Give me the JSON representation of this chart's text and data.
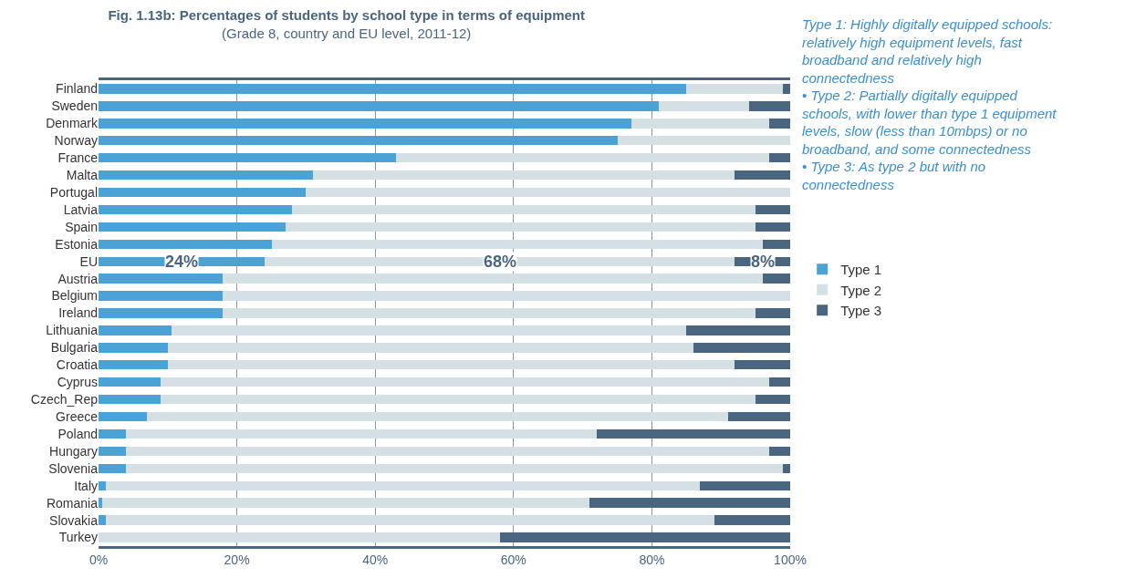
{
  "chart_data": {
    "type": "bar",
    "orientation": "horizontal",
    "stacked": true,
    "title": "Fig. 1.13b: Percentages of students by school type in terms of equipment",
    "subtitle": "(Grade 8, country and EU level, 2011-12)",
    "categories": [
      "Finland",
      "Sweden",
      "Denmark",
      "Norway",
      "France",
      "Malta",
      "Portugal",
      "Latvia",
      "Spain",
      "Estonia",
      "EU",
      "Austria",
      "Belgium",
      "Ireland",
      "Lithuania",
      "Bulgaria",
      "Croatia",
      "Cyprus",
      "Czech_Rep",
      "Greece",
      "Poland",
      "Hungary",
      "Slovenia",
      "Italy",
      "Romania",
      "Slovakia",
      "Turkey"
    ],
    "series": [
      {
        "name": "Type 1",
        "color": "#4aa3d4",
        "values": [
          85,
          81,
          77,
          75,
          43,
          31,
          30,
          28,
          27,
          25,
          24,
          18,
          18,
          18,
          10.5,
          10,
          10,
          9,
          9,
          7,
          4,
          4,
          4,
          1,
          0.5,
          1,
          0
        ],
        "value_labels": [
          null,
          null,
          null,
          null,
          null,
          null,
          null,
          null,
          null,
          null,
          "24%",
          null,
          null,
          null,
          null,
          null,
          null,
          null,
          null,
          null,
          null,
          null,
          null,
          null,
          null,
          null,
          null
        ]
      },
      {
        "name": "Type 2",
        "color": "#d4e0e4",
        "values": [
          14,
          13,
          20,
          25,
          54,
          61,
          70,
          67,
          68,
          71,
          68,
          78,
          82,
          77,
          74.5,
          76,
          82,
          88,
          86,
          84,
          68,
          93,
          95,
          86,
          70.5,
          88,
          58
        ],
        "value_labels": [
          null,
          null,
          null,
          null,
          null,
          null,
          null,
          null,
          null,
          null,
          "68%",
          null,
          null,
          null,
          null,
          null,
          null,
          null,
          null,
          null,
          null,
          null,
          null,
          null,
          null,
          null,
          null
        ]
      },
      {
        "name": "Type 3",
        "color": "#4a6580",
        "values": [
          1,
          6,
          3,
          0,
          3,
          8,
          0,
          5,
          5,
          4,
          8,
          4,
          0,
          5,
          15,
          14,
          8,
          3,
          5,
          9,
          28,
          3,
          1,
          13,
          29,
          11,
          42
        ],
        "value_labels": [
          null,
          null,
          null,
          null,
          null,
          null,
          null,
          null,
          null,
          null,
          "8%",
          null,
          null,
          null,
          null,
          null,
          null,
          null,
          null,
          null,
          null,
          null,
          null,
          null,
          null,
          null,
          null
        ]
      }
    ],
    "xlim": [
      0,
      100
    ],
    "xticks": [
      {
        "value": 0,
        "label": "0%"
      },
      {
        "value": 20,
        "label": "20%"
      },
      {
        "value": 40,
        "label": "40%"
      },
      {
        "value": 60,
        "label": "60%"
      },
      {
        "value": 80,
        "label": "80%"
      },
      {
        "value": 100,
        "label": "100%"
      }
    ],
    "grid": "x",
    "legend": "right",
    "annotations": [
      "Type 1: Highly digitally equipped schools: relatively high equipment levels, fast broadband and relatively high connectedness",
      "• Type 2: Partially digitally equipped schools, with lower than type 1 equipment levels, slow (less than 10mbps) or no broadband, and some connectedness",
      "• Type 3: As type 2 but with no connectedness"
    ]
  }
}
